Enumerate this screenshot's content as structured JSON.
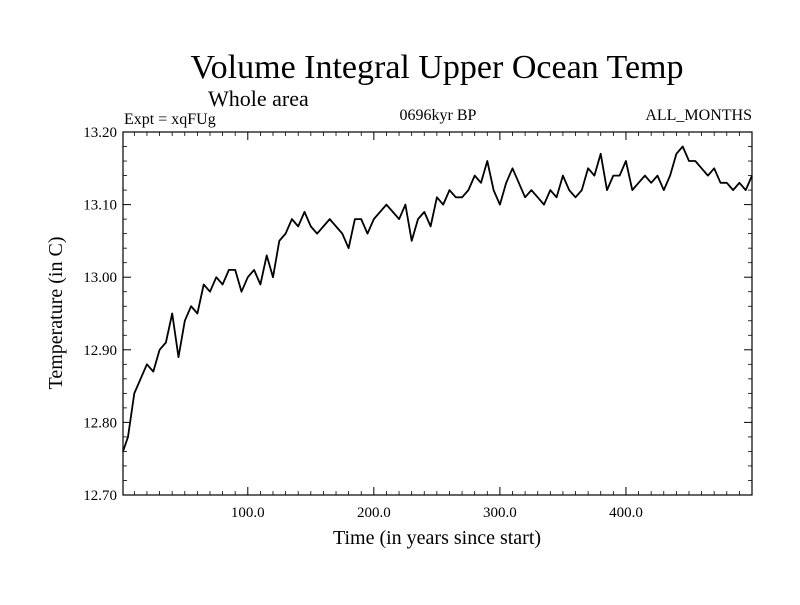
{
  "chart_data": {
    "type": "line",
    "title": "Volume Integral Upper Ocean Temp",
    "subtitle": "Whole area",
    "expt_label": "Expt = xqFUg",
    "period_label": "0696kyr BP",
    "months_label": "ALL_MONTHS",
    "xlabel": "Time (in years since start)",
    "ylabel": "Temperature (in C)",
    "xlim": [
      1,
      500
    ],
    "ylim": [
      12.7,
      13.2
    ],
    "x_ticks": [
      100,
      200,
      300,
      400
    ],
    "x_tick_labels": [
      "100.0",
      "200.0",
      "300.0",
      "400.0"
    ],
    "y_ticks": [
      12.7,
      12.8,
      12.9,
      13.0,
      13.1,
      13.2
    ],
    "y_tick_labels": [
      "12.70",
      "12.80",
      "12.90",
      "13.00",
      "13.10",
      "13.20"
    ],
    "series": [
      {
        "name": "xqFUg",
        "x": [
          1,
          5,
          10,
          15,
          20,
          25,
          30,
          35,
          40,
          45,
          50,
          55,
          60,
          65,
          70,
          75,
          80,
          85,
          90,
          95,
          100,
          105,
          110,
          115,
          120,
          125,
          130,
          135,
          140,
          145,
          150,
          155,
          160,
          165,
          170,
          175,
          180,
          185,
          190,
          195,
          200,
          205,
          210,
          215,
          220,
          225,
          230,
          235,
          240,
          245,
          250,
          255,
          260,
          265,
          270,
          275,
          280,
          285,
          290,
          295,
          300,
          305,
          310,
          315,
          320,
          325,
          330,
          335,
          340,
          345,
          350,
          355,
          360,
          365,
          370,
          375,
          380,
          385,
          390,
          395,
          400,
          405,
          410,
          415,
          420,
          425,
          430,
          435,
          440,
          445,
          450,
          455,
          460,
          465,
          470,
          475,
          480,
          485,
          490,
          495,
          500
        ],
        "values": [
          12.76,
          12.78,
          12.84,
          12.86,
          12.88,
          12.87,
          12.9,
          12.91,
          12.95,
          12.89,
          12.94,
          12.96,
          12.95,
          12.99,
          12.98,
          13.0,
          12.99,
          13.01,
          13.01,
          12.98,
          13.0,
          13.01,
          12.99,
          13.03,
          13.0,
          13.05,
          13.06,
          13.08,
          13.07,
          13.09,
          13.07,
          13.06,
          13.07,
          13.08,
          13.07,
          13.06,
          13.04,
          13.08,
          13.08,
          13.06,
          13.08,
          13.09,
          13.1,
          13.09,
          13.08,
          13.1,
          13.05,
          13.08,
          13.09,
          13.07,
          13.11,
          13.1,
          13.12,
          13.11,
          13.11,
          13.12,
          13.14,
          13.13,
          13.16,
          13.12,
          13.1,
          13.13,
          13.15,
          13.13,
          13.11,
          13.12,
          13.11,
          13.1,
          13.12,
          13.11,
          13.14,
          13.12,
          13.11,
          13.12,
          13.15,
          13.14,
          13.17,
          13.12,
          13.14,
          13.14,
          13.16,
          13.12,
          13.13,
          13.14,
          13.13,
          13.14,
          13.12,
          13.14,
          13.17,
          13.18,
          13.16,
          13.16,
          13.15,
          13.14,
          13.15,
          13.13,
          13.13,
          13.12,
          13.13,
          13.12,
          13.14
        ]
      }
    ]
  }
}
